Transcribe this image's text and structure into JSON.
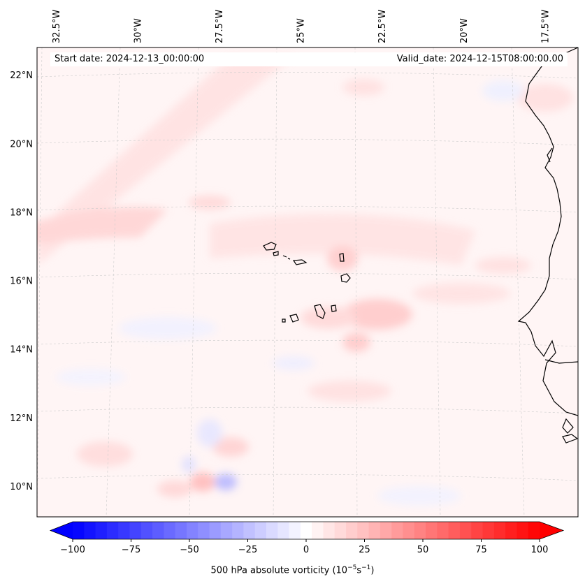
{
  "map": {
    "start_date": "Start date: 2024-12-13_00:00:00",
    "valid_date": "Valid_date: 2024-12-15T08:00:00.00",
    "lon_labels": [
      "32.5°W",
      "30°W",
      "27.5°W",
      "25°W",
      "22.5°W",
      "20°W",
      "17.5°W"
    ],
    "lat_labels": [
      "22°N",
      "20°N",
      "18°N",
      "16°N",
      "14°N",
      "12°N",
      "10°N"
    ],
    "lon_values": [
      -32.5,
      -30,
      -27.5,
      -25,
      -22.5,
      -20,
      -17.5
    ],
    "lat_values": [
      22,
      20,
      18,
      16,
      14,
      12,
      10
    ],
    "extent": {
      "lon_min": -33.1,
      "lon_max": -16.5,
      "lat_min": 9.1,
      "lat_max": 22.8
    },
    "field": "500 hPa absolute vorticity",
    "colormap": "bwr",
    "colors": {
      "negative": "#0000ff",
      "zero": "#ffffff",
      "positive": "#ff0000",
      "coastline": "#000000"
    }
  },
  "colorbar": {
    "label_prefix": "500 hPa absolute vorticity (10",
    "label_exp1": "−5",
    "label_mid": "s",
    "label_exp2": "−1",
    "label_suffix": ")",
    "min": -100,
    "max": 100,
    "ticks": [
      "−100",
      "−75",
      "−50",
      "−25",
      "0",
      "25",
      "50",
      "75",
      "100"
    ],
    "tick_values": [
      -100,
      -75,
      -50,
      -25,
      0,
      25,
      50,
      75,
      100
    ],
    "n_levels": 41,
    "extend": "both"
  }
}
